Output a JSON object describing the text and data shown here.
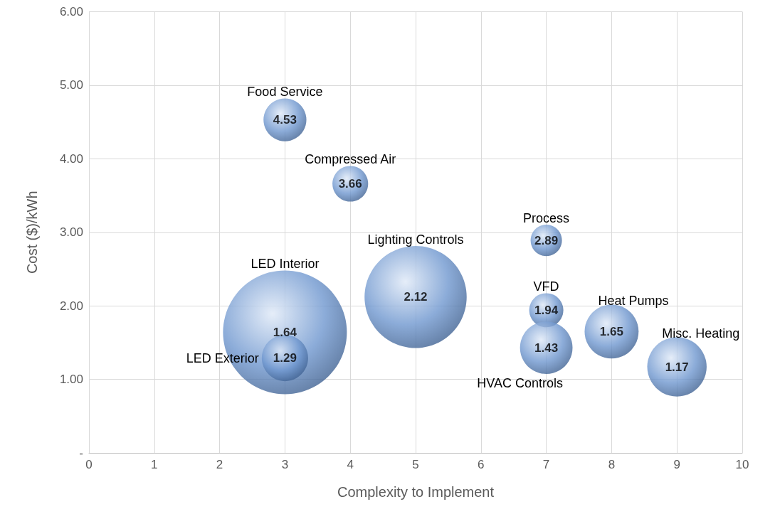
{
  "chart_data": {
    "type": "bubble",
    "xlabel": "Complexity to Implement",
    "ylabel": "Cost ($)/kWh",
    "xlim": [
      0,
      10
    ],
    "xticks": [
      0,
      1,
      2,
      3,
      4,
      5,
      6,
      7,
      8,
      9,
      10
    ],
    "ylim": [
      0,
      6
    ],
    "yticks": [
      {
        "value": 0,
        "label": "-"
      },
      {
        "value": 1,
        "label": "1.00"
      },
      {
        "value": 2,
        "label": "2.00"
      },
      {
        "value": 3,
        "label": "3.00"
      },
      {
        "value": 4,
        "label": "4.00"
      },
      {
        "value": 5,
        "label": "5.00"
      },
      {
        "value": 6,
        "label": "6.00"
      }
    ],
    "grid": true,
    "legend": false,
    "data_labels": true,
    "series": [
      {
        "name": "Food Service",
        "color": "#6f97cf",
        "x": [
          3
        ],
        "values": [
          4.53
        ],
        "sizes": [
          0.12
        ]
      },
      {
        "name": "Compressed Air",
        "color": "#6f97cf",
        "x": [
          4
        ],
        "values": [
          3.66
        ],
        "sizes": [
          0.083
        ]
      },
      {
        "name": "Process",
        "color": "#6f97cf",
        "x": [
          7
        ],
        "values": [
          2.89
        ],
        "sizes": [
          0.064
        ]
      },
      {
        "name": "Lighting Controls",
        "color": "#6f97cf",
        "x": [
          5
        ],
        "values": [
          2.12
        ],
        "sizes": [
          0.68
        ]
      },
      {
        "name": "LED Interior",
        "color": "#6f97cf",
        "x": [
          3
        ],
        "values": [
          1.64
        ],
        "sizes": [
          1
        ]
      },
      {
        "name": "LED Exterior",
        "color": "#6f97cf",
        "x": [
          3
        ],
        "values": [
          1.29
        ],
        "sizes": [
          0.14
        ]
      },
      {
        "name": "VFD",
        "color": "#6f97cf",
        "x": [
          7
        ],
        "values": [
          1.94
        ],
        "sizes": [
          0.076
        ]
      },
      {
        "name": "HVAC Controls",
        "color": "#6f97cf",
        "x": [
          7
        ],
        "values": [
          1.43
        ],
        "sizes": [
          0.18
        ]
      },
      {
        "name": "Heat Pumps",
        "color": "#6f97cf",
        "x": [
          8
        ],
        "values": [
          1.65
        ],
        "sizes": [
          0.19
        ]
      },
      {
        "name": "Misc. Heating",
        "color": "#6f97cf",
        "x": [
          9
        ],
        "values": [
          1.17
        ],
        "sizes": [
          0.23
        ]
      }
    ]
  }
}
